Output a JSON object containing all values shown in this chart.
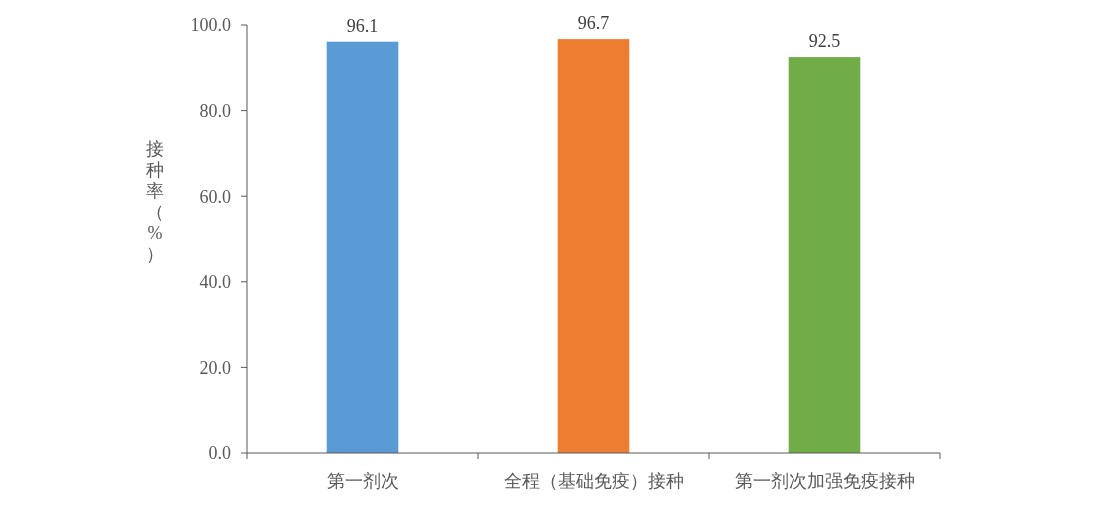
{
  "chart_data": {
    "type": "bar",
    "ylabel": "接种率（%）",
    "categories": [
      "第一剂次",
      "全程（基础免疫）接种",
      "第一剂次加强免疫接种"
    ],
    "values": [
      96.1,
      96.7,
      92.5
    ],
    "colors": [
      "#5b9bd5",
      "#ed7d31",
      "#70ad47"
    ],
    "ylim": [
      0,
      100
    ],
    "yticks": [
      {
        "value": 0,
        "label": "0.0"
      },
      {
        "value": 20,
        "label": "20.0"
      },
      {
        "value": 40,
        "label": "40.0"
      },
      {
        "value": 60,
        "label": "60.0"
      },
      {
        "value": 80,
        "label": "80.0"
      },
      {
        "value": 100,
        "label": "100.0"
      }
    ],
    "data_labels": true,
    "grid": false
  }
}
